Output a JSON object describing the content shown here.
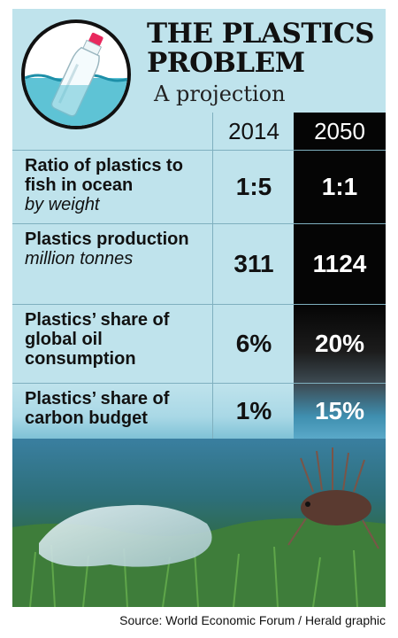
{
  "header": {
    "title_line1": "THE PLASTICS",
    "title_line2": "PROBLEM",
    "subtitle": "A projection"
  },
  "columns": {
    "year1": "2014",
    "year2": "2050"
  },
  "rows": [
    {
      "label": "Ratio of plastics to fish in ocean",
      "unit": "by weight",
      "v2014": "1:5",
      "v2050": "1:1"
    },
    {
      "label": "Plastics production",
      "unit": "million tonnes",
      "v2014": "311",
      "v2050": "1124"
    },
    {
      "label": "Plastics’ share of global oil consumption",
      "unit": "",
      "v2014": "6%",
      "v2050": "20%"
    },
    {
      "label": "Plastics’ share of carbon budget",
      "unit": "",
      "v2014": "1%",
      "v2050": "15%"
    }
  ],
  "source": "Source: World Economic Forum / Herald graphic",
  "colors": {
    "background": "#bfe3ec",
    "dark_column": "#050505",
    "ocean": "#2d6f7a"
  }
}
